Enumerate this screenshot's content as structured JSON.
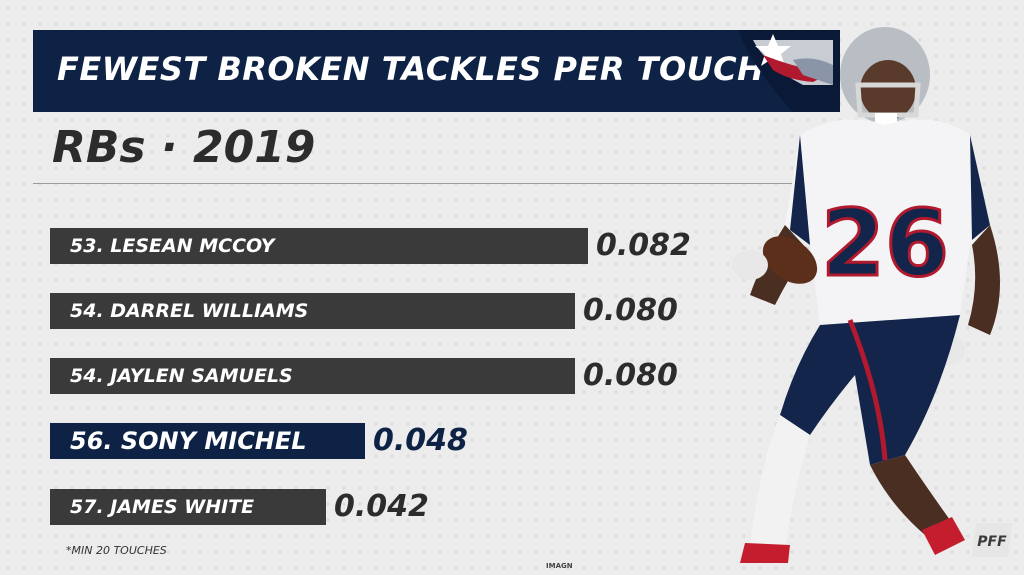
{
  "header": {
    "title": "FEWEST BROKEN TACKLES PER TOUCH",
    "subtitle": "RBs · 2019"
  },
  "chart_data": {
    "type": "bar",
    "orientation": "horizontal",
    "title": "FEWEST BROKEN TACKLES PER TOUCH",
    "subtitle": "RBs · 2019",
    "categories": [
      "53. LESEAN MCCOY",
      "54. DARREL WILLIAMS",
      "54. JAYLEN SAMUELS",
      "56. SONY MICHEL",
      "57. JAMES WHITE"
    ],
    "values": [
      0.082,
      0.08,
      0.08,
      0.048,
      0.042
    ],
    "value_labels": [
      "0.082",
      "0.080",
      "0.080",
      "0.048",
      "0.042"
    ],
    "highlight": "56. SONY MICHEL",
    "colors": {
      "bar": "#3a3a3a",
      "highlight": "#0d2245"
    },
    "xlim": [
      0,
      0.085
    ],
    "grid": false
  },
  "footnote": "*MIN 20 TOUCHES",
  "credit": "IMAGN",
  "icons": {
    "team_logo": "patriots-logo-icon",
    "brand_logo": "pff-logo-icon",
    "photo": "player-photo"
  }
}
